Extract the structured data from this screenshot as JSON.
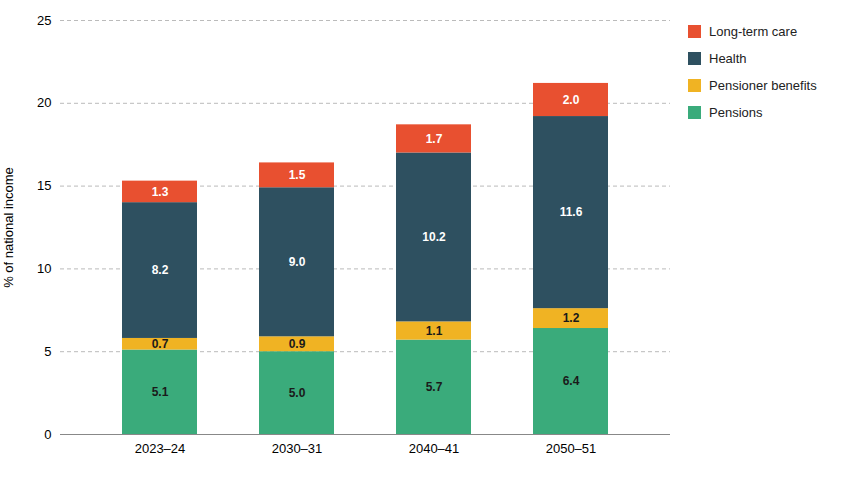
{
  "chart_data": {
    "type": "bar",
    "stacked": true,
    "categories": [
      "2023–24",
      "2030–31",
      "2040–41",
      "2050–51"
    ],
    "series": [
      {
        "name": "Pensions",
        "color": "#3aab7b",
        "values": [
          5.1,
          5.0,
          5.7,
          6.4
        ],
        "value_labels": [
          "5.1",
          "5.0",
          "5.7",
          "6.4"
        ]
      },
      {
        "name": "Pensioner benefits",
        "color": "#f0b323",
        "values": [
          0.7,
          0.9,
          1.1,
          1.2
        ],
        "value_labels": [
          "0.7",
          "0.9",
          "1.1",
          "1.2"
        ]
      },
      {
        "name": "Health",
        "color": "#2e5060",
        "values": [
          8.2,
          9.0,
          10.2,
          11.6
        ],
        "value_labels": [
          "8.2",
          "9.0",
          "10.2",
          "11.6"
        ]
      },
      {
        "name": "Long-term care",
        "color": "#e85030",
        "values": [
          1.3,
          1.5,
          1.7,
          2.0
        ],
        "value_labels": [
          "1.3",
          "1.5",
          "1.7",
          "2.0"
        ]
      }
    ],
    "ylabel": "% of national income",
    "ylim": [
      0,
      25
    ],
    "yticks": [
      0,
      5,
      10,
      15,
      20,
      25
    ],
    "grid": true,
    "legend": "right",
    "data_labels": true
  }
}
